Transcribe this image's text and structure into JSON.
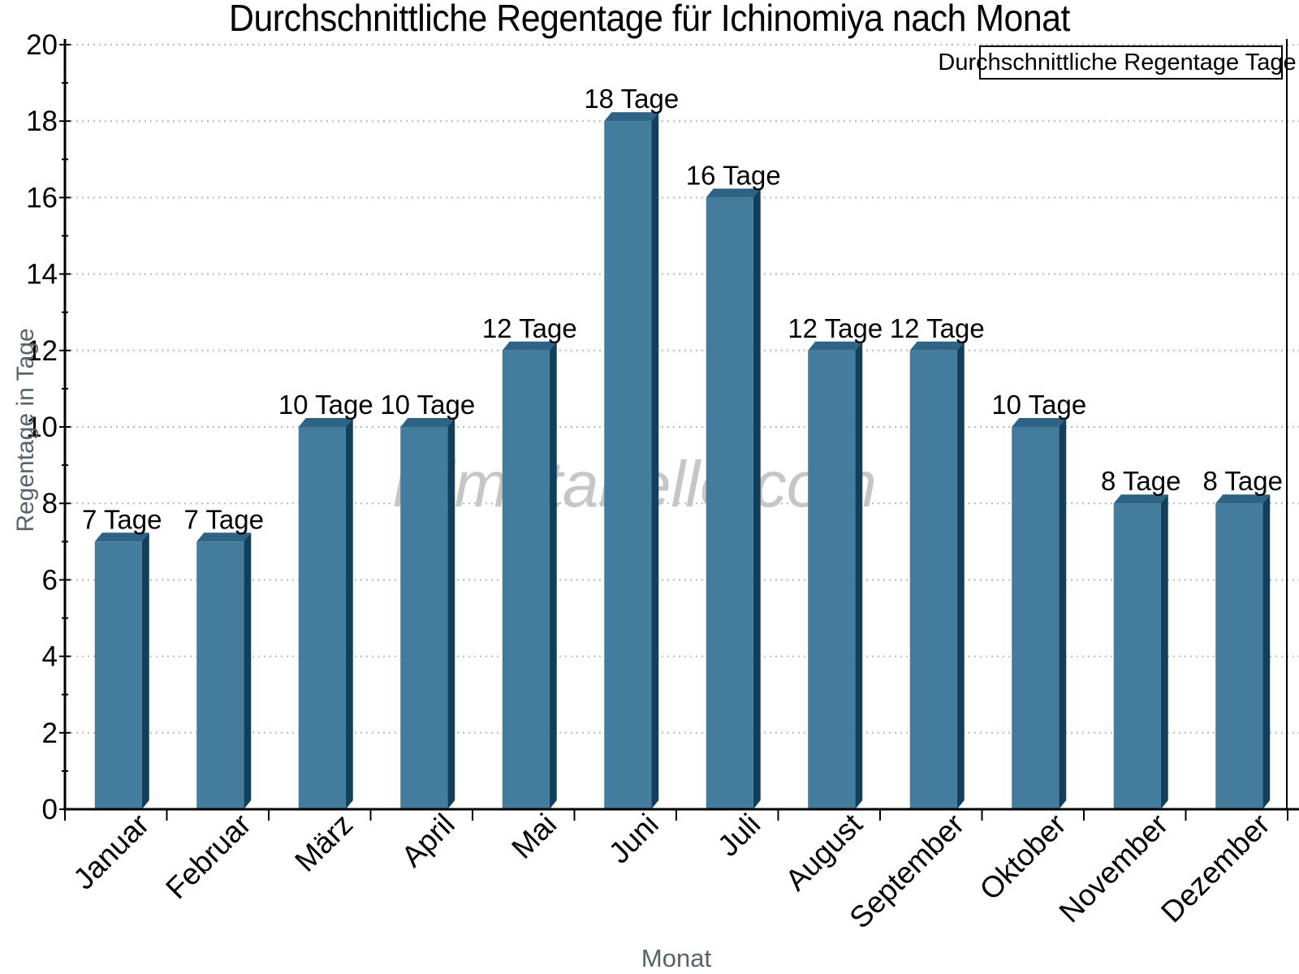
{
  "watermark": "klimatabelle.com",
  "legend": {
    "label": "Durchschnittliche Regentage Tage"
  },
  "colors": {
    "bar_face": "#447C9E",
    "bar_top": "#2E6384",
    "bar_side": "#12405C",
    "grid": "#b9b9b9",
    "axis": "#000000",
    "axis_title": "#56626c",
    "watermark": "#c6c6c6",
    "tick_label": "#000000"
  },
  "chart_data": {
    "type": "bar",
    "title": "Durchschnittliche Regentage für Ichinomiya nach Monat",
    "categories": [
      "Januar",
      "Februar",
      "März",
      "April",
      "Mai",
      "Juni",
      "Juli",
      "August",
      "September",
      "Oktober",
      "November",
      "Dezember"
    ],
    "values": [
      7,
      7,
      10,
      10,
      12,
      18,
      16,
      12,
      12,
      10,
      8,
      8
    ],
    "value_suffix": "Tage",
    "value_labels": [
      "7 Tage",
      "7 Tage",
      "10 Tage",
      "10 Tage",
      "12 Tage",
      "18 Tage",
      "16 Tage",
      "12 Tage",
      "12 Tage",
      "10 Tage",
      "8 Tage",
      "8 Tage"
    ],
    "xlabel": "Monat",
    "ylabel": "Regentage in Tage",
    "ylim": [
      0,
      20
    ],
    "ytick_step": 2,
    "yticks": [
      0,
      2,
      4,
      6,
      8,
      10,
      12,
      14,
      16,
      18,
      20
    ],
    "grid": "horizontal-dotted",
    "legend_entries": [
      "Durchschnittliche Regentage Tage"
    ],
    "legend_position": "top-right",
    "bar_style": "3d-bevel"
  }
}
